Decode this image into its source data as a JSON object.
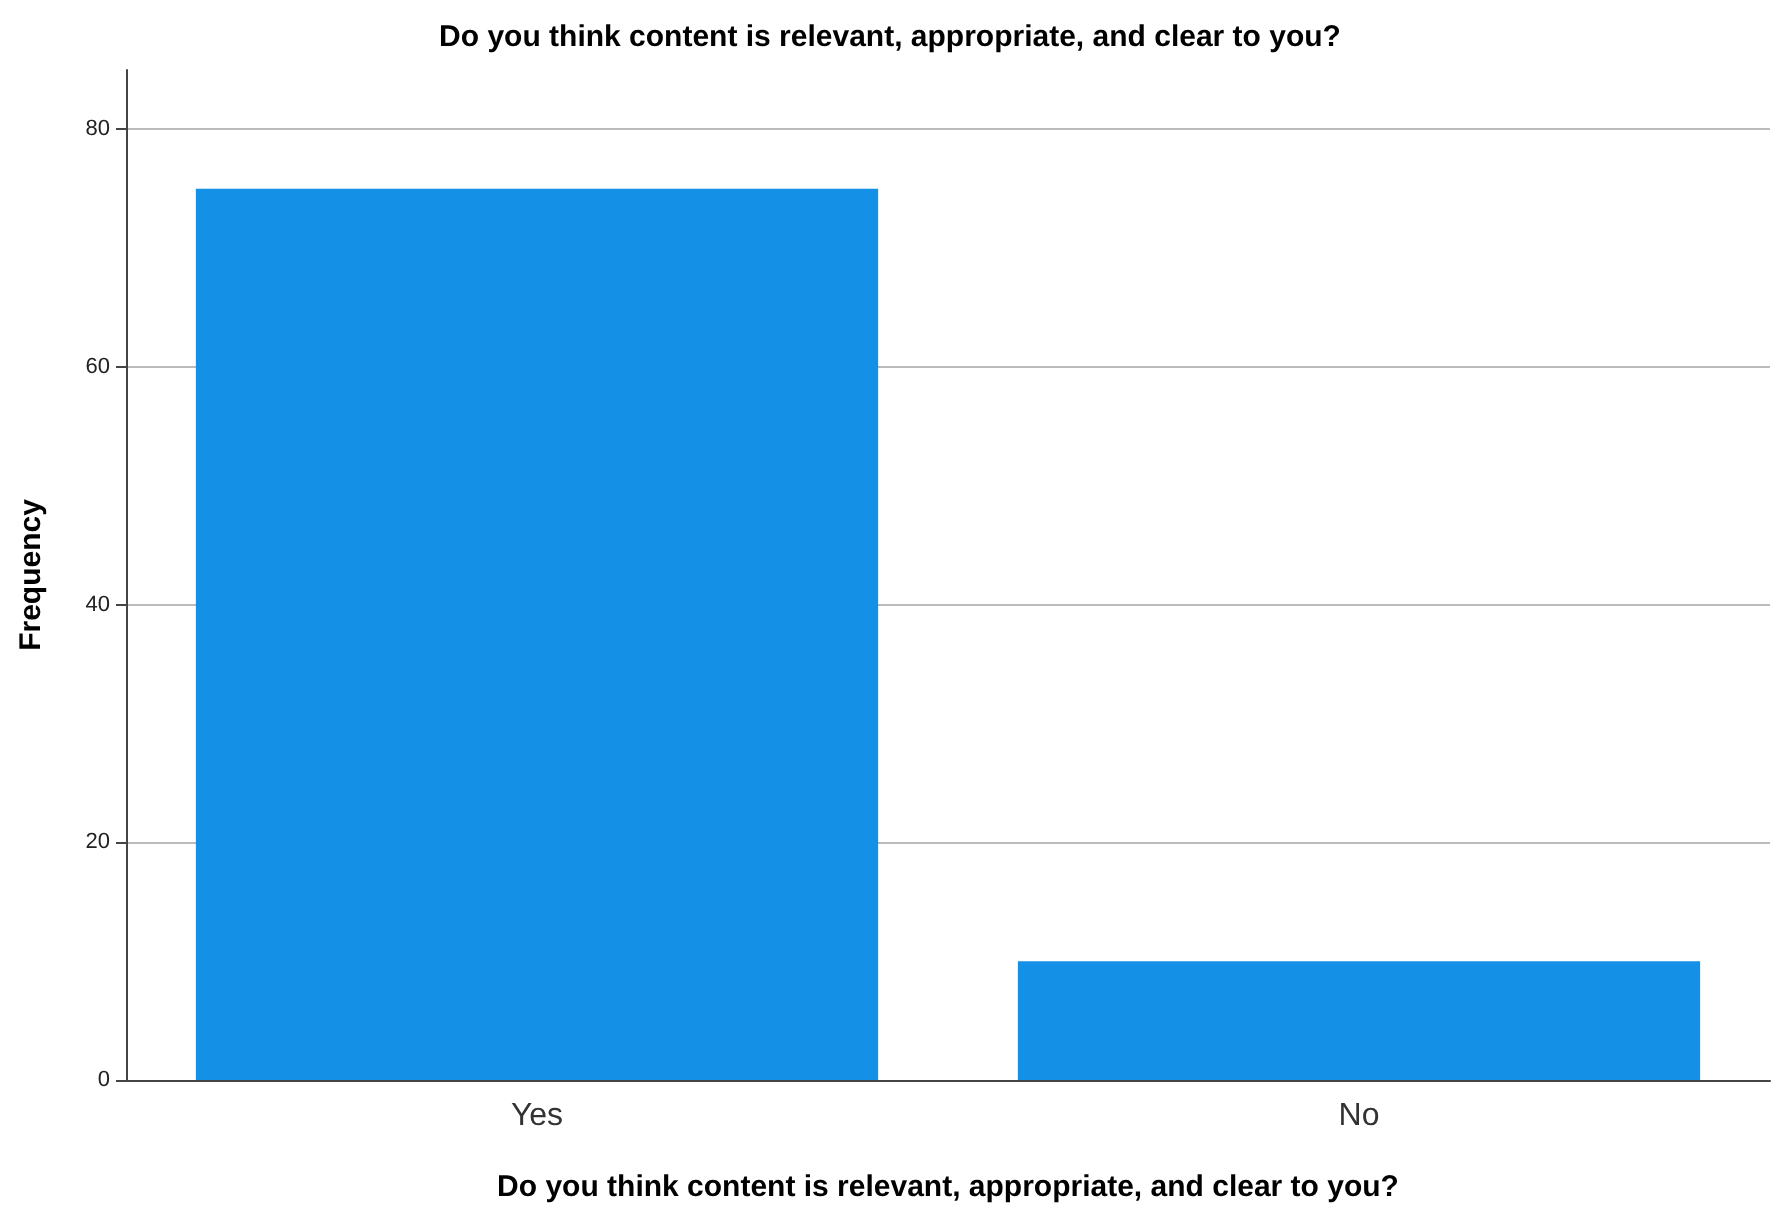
{
  "chart_data": {
    "type": "bar",
    "title": "Do you think content is relevant, appropriate, and clear to you?",
    "xlabel": "Do you think content is relevant, appropriate, and clear to you?",
    "ylabel": "Frequency",
    "categories": [
      "Yes",
      "No"
    ],
    "values": [
      75,
      10
    ],
    "color": "#1490e6",
    "ylim": [
      0,
      85
    ],
    "yticks": [
      0,
      20,
      40,
      60,
      80
    ],
    "grid": "y"
  }
}
